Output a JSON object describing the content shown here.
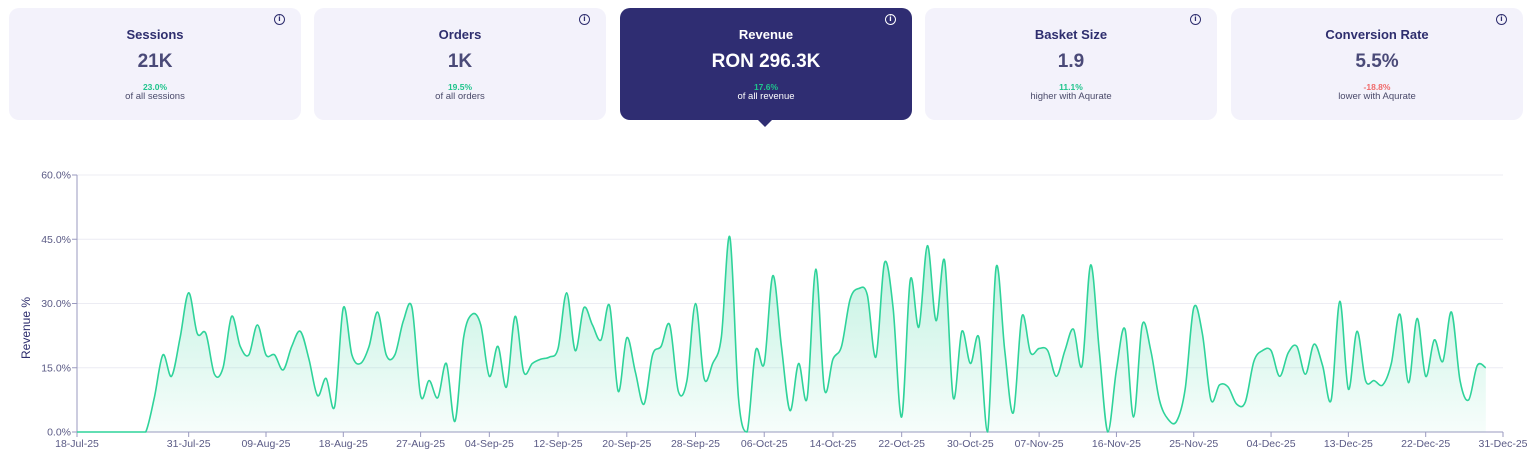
{
  "cards": [
    {
      "title": "Sessions",
      "value": "21K",
      "delta": "23.0%",
      "delta_color": "#1fc48c",
      "sub": "of all sessions",
      "active": false
    },
    {
      "title": "Orders",
      "value": "1K",
      "delta": "19.5%",
      "delta_color": "#1fc48c",
      "sub": "of all orders",
      "active": false
    },
    {
      "title": "Revenue",
      "value": "RON 296.3K",
      "delta": "17.6%",
      "delta_color": "#1fc48c",
      "sub": "of all revenue",
      "active": true
    },
    {
      "title": "Basket Size",
      "value": "1.9",
      "delta": "11.1%",
      "delta_color": "#1fc48c",
      "sub": "higher with Aqurate",
      "active": false
    },
    {
      "title": "Conversion Rate",
      "value": "5.5%",
      "delta": "-18.8%",
      "delta_color": "#f06a6a",
      "sub": "lower with Aqurate",
      "active": false
    }
  ],
  "info_icon": "info-circle-icon",
  "colors": {
    "accent": "#2f2d72",
    "line": "#2fd39a",
    "positive": "#1fc48c",
    "negative": "#f06a6a"
  },
  "chart_data": {
    "type": "area",
    "ylabel": "Revenue %",
    "xlabel": "",
    "ylim": [
      0,
      60
    ],
    "yticks": [
      "0.0%",
      "15.0%",
      "30.0%",
      "45.0%",
      "60.0%"
    ],
    "ytick_values": [
      0,
      15,
      30,
      45,
      60
    ],
    "xlim": [
      "2025-07-18",
      "2025-12-31"
    ],
    "xticks": [
      "18-Jul-25",
      "31-Jul-25",
      "09-Aug-25",
      "18-Aug-25",
      "27-Aug-25",
      "04-Sep-25",
      "12-Sep-25",
      "20-Sep-25",
      "28-Sep-25",
      "06-Oct-25",
      "14-Oct-25",
      "22-Oct-25",
      "30-Oct-25",
      "07-Nov-25",
      "16-Nov-25",
      "25-Nov-25",
      "04-Dec-25",
      "13-Dec-25",
      "22-Dec-25",
      "31-Dec-25"
    ],
    "xtick_dates": [
      "2025-07-18",
      "2025-07-31",
      "2025-08-09",
      "2025-08-18",
      "2025-08-27",
      "2025-09-04",
      "2025-09-12",
      "2025-09-20",
      "2025-09-28",
      "2025-10-06",
      "2025-10-14",
      "2025-10-22",
      "2025-10-30",
      "2025-11-07",
      "2025-11-16",
      "2025-11-25",
      "2025-12-04",
      "2025-12-13",
      "2025-12-22",
      "2025-12-31"
    ],
    "grid": true,
    "series": [
      {
        "values": [
          0.0,
          0.0,
          0.0,
          0.0,
          0.0,
          0.0,
          0.0,
          0.0,
          0.0,
          8.0,
          18.0,
          13.0,
          22.0,
          32.5,
          23.0,
          23.0,
          13.5,
          15.0,
          27.0,
          20.0,
          18.0,
          25.0,
          18.0,
          18.0,
          14.5,
          20.0,
          23.5,
          17.0,
          8.5,
          12.5,
          6.0,
          29.0,
          18.0,
          16.0,
          20.0,
          28.0,
          18.0,
          18.0,
          26.0,
          29.0,
          8.5,
          12.0,
          8.0,
          16.0,
          2.5,
          22.0,
          27.5,
          25.0,
          13.0,
          20.0,
          10.5,
          27.0,
          14.0,
          16.0,
          17.0,
          17.5,
          19.5,
          32.5,
          19.0,
          29.0,
          25.0,
          21.5,
          29.5,
          9.5,
          22.0,
          14.0,
          6.5,
          18.0,
          20.0,
          25.0,
          9.5,
          12.0,
          30.0,
          12.5,
          16.0,
          22.0,
          45.5,
          8.0,
          0.0,
          19.0,
          16.0,
          36.5,
          20.0,
          5.0,
          16.0,
          8.0,
          38.0,
          10.0,
          17.0,
          20.0,
          31.0,
          33.5,
          32.0,
          17.5,
          39.5,
          29.0,
          3.5,
          35.5,
          24.5,
          43.5,
          26.0,
          40.0,
          8.0,
          23.5,
          16.0,
          22.0,
          0.0,
          38.5,
          19.0,
          4.5,
          27.0,
          18.5,
          19.5,
          19.0,
          13.0,
          19.0,
          24.0,
          15.5,
          39.0,
          19.0,
          0.0,
          14.5,
          24.0,
          3.5,
          25.0,
          19.0,
          7.5,
          3.0,
          2.5,
          10.0,
          29.0,
          23.0,
          7.5,
          11.0,
          10.5,
          6.5,
          7.0,
          16.5,
          19.0,
          19.0,
          13.0,
          18.5,
          20.0,
          13.5,
          20.5,
          15.5,
          7.5,
          30.5,
          10.0,
          23.5,
          12.0,
          12.0,
          11.0,
          16.0,
          27.5,
          11.5,
          26.5,
          13.0,
          21.5,
          16.5,
          28.0,
          12.0,
          7.5,
          15.5,
          15.0
        ]
      }
    ]
  }
}
